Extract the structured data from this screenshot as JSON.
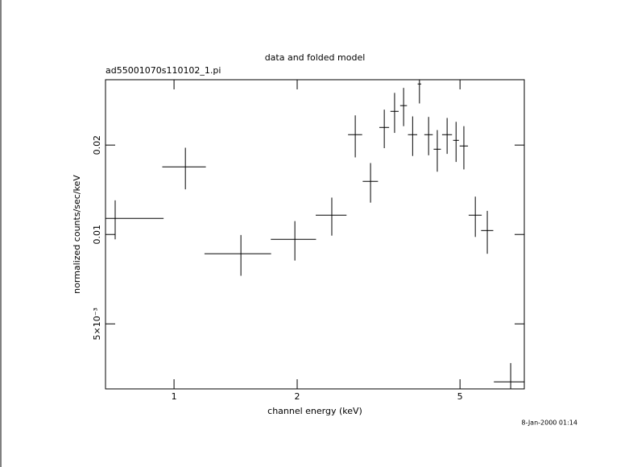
{
  "chart_data": {
    "type": "errorbar",
    "title": "data and folded model",
    "subtitle": "ad55001070s110102_1.pi",
    "x_label": "channel energy (keV)",
    "y_label": "normalized counts/sec/keV",
    "timestamp": "8-Jan-2000 01:14",
    "x_scale": "log",
    "y_scale": "log",
    "color": "#000000",
    "xlim": [
      0.68,
      7.18
    ],
    "ylim": [
      0.00302,
      0.0332
    ],
    "xticks": [
      1,
      2,
      5
    ],
    "yticks": [
      {
        "value": 0.005,
        "label": "5×10⁻³"
      },
      0.01,
      0.02
    ],
    "x": [
      0.718,
      1.066,
      1.457,
      1.974,
      2.43,
      2.773,
      3.022,
      3.265,
      3.46,
      3.64,
      3.83,
      3.98,
      4.19,
      4.4,
      4.65,
      4.89,
      5.11,
      5.45,
      5.83,
      6.65
    ],
    "x_err": [
      0.225,
      0.13,
      0.27,
      0.25,
      0.21,
      0.11,
      0.13,
      0.09,
      0.08,
      0.07,
      0.1,
      0.04,
      0.1,
      0.09,
      0.13,
      0.08,
      0.12,
      0.2,
      0.2,
      0.6
    ],
    "y": [
      0.01133,
      0.01689,
      0.00861,
      0.00963,
      0.01161,
      0.02168,
      0.0151,
      0.02293,
      0.02598,
      0.02716,
      0.02168,
      0.03212,
      0.02168,
      0.01937,
      0.02168,
      0.02075,
      0.01986,
      0.01161,
      0.01031,
      0.00319
    ],
    "y_err": [
      0.0017,
      0.0027,
      0.00135,
      0.00146,
      0.0017,
      0.0035,
      0.0023,
      0.0034,
      0.004,
      0.004,
      0.0033,
      0.0045,
      0.0032,
      0.0031,
      0.003,
      0.0032,
      0.0033,
      0.0018,
      0.0017,
      0.0005
    ]
  }
}
